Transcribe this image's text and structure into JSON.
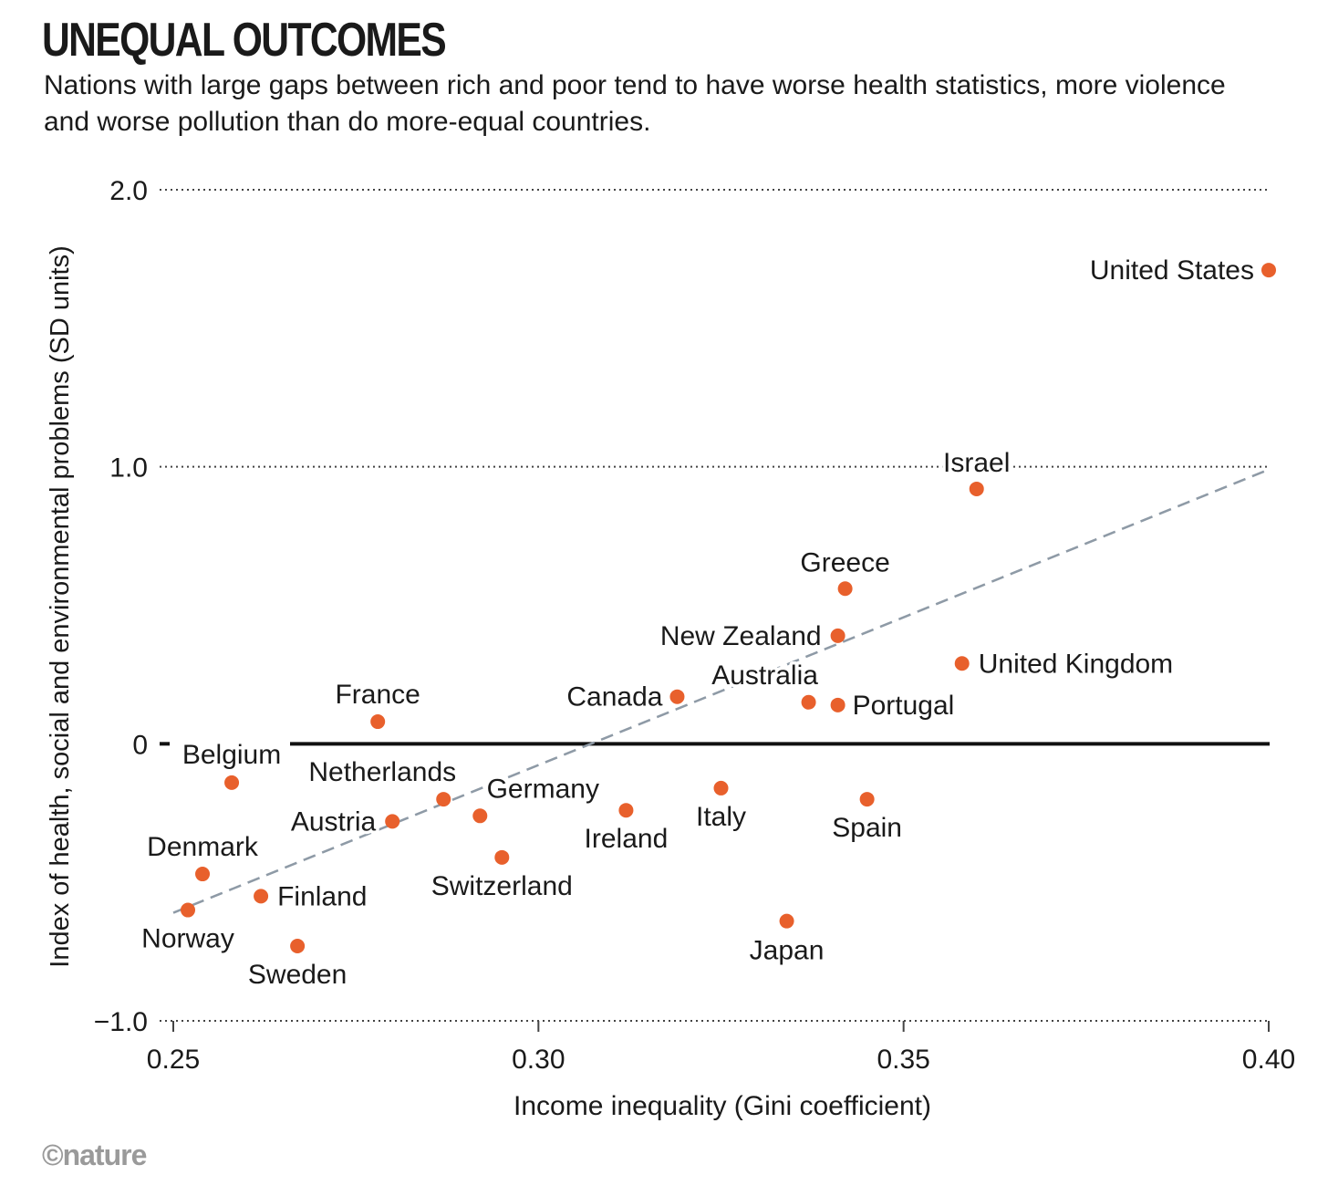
{
  "title": "UNEQUAL OUTCOMES",
  "subtitle": "Nations with large gaps between rich and poor tend to have worse health statistics, more violence and worse pollution than do more-equal countries.",
  "logo": "©nature",
  "chart_data": {
    "type": "scatter",
    "title": "UNEQUAL OUTCOMES",
    "xlabel": "Income inequality (Gini coefficient)",
    "ylabel": "Index of health, social and environmental problems (SD units)",
    "xlim": [
      0.25,
      0.4
    ],
    "ylim": [
      -1.0,
      2.0
    ],
    "xticks": [
      {
        "v": 0.25,
        "label": "0.25"
      },
      {
        "v": 0.3,
        "label": "0.30"
      },
      {
        "v": 0.35,
        "label": "0.35"
      },
      {
        "v": 0.4,
        "label": "0.40"
      }
    ],
    "yticks": [
      {
        "v": 2.0,
        "label": "2.0"
      },
      {
        "v": 1.0,
        "label": "1.0"
      },
      {
        "v": 0,
        "label": "0"
      },
      {
        "v": -1.0,
        "label": "−1.0"
      }
    ],
    "grid": "horizontal dotted",
    "trendline": {
      "x": [
        0.25,
        0.4
      ],
      "y": [
        -0.61,
        0.99
      ]
    },
    "color": "#e8602c",
    "points": [
      {
        "name": "United States",
        "x": 0.4,
        "y": 1.71
      },
      {
        "name": "Israel",
        "x": 0.36,
        "y": 0.92
      },
      {
        "name": "Greece",
        "x": 0.342,
        "y": 0.56
      },
      {
        "name": "New Zealand",
        "x": 0.341,
        "y": 0.39
      },
      {
        "name": "United Kingdom",
        "x": 0.358,
        "y": 0.29
      },
      {
        "name": "Australia",
        "x": 0.337,
        "y": 0.15
      },
      {
        "name": "Portugal",
        "x": 0.341,
        "y": 0.14
      },
      {
        "name": "Canada",
        "x": 0.319,
        "y": 0.17
      },
      {
        "name": "France",
        "x": 0.278,
        "y": 0.08
      },
      {
        "name": "Belgium",
        "x": 0.258,
        "y": -0.14
      },
      {
        "name": "Netherlands",
        "x": 0.287,
        "y": -0.2
      },
      {
        "name": "Germany",
        "x": 0.292,
        "y": -0.26
      },
      {
        "name": "Austria",
        "x": 0.28,
        "y": -0.28
      },
      {
        "name": "Switzerland",
        "x": 0.295,
        "y": -0.41
      },
      {
        "name": "Ireland",
        "x": 0.312,
        "y": -0.24
      },
      {
        "name": "Italy",
        "x": 0.325,
        "y": -0.16
      },
      {
        "name": "Spain",
        "x": 0.345,
        "y": -0.2
      },
      {
        "name": "Japan",
        "x": 0.334,
        "y": -0.64
      },
      {
        "name": "Denmark",
        "x": 0.254,
        "y": -0.47
      },
      {
        "name": "Finland",
        "x": 0.262,
        "y": -0.55
      },
      {
        "name": "Norway",
        "x": 0.252,
        "y": -0.6
      },
      {
        "name": "Sweden",
        "x": 0.267,
        "y": -0.73
      }
    ]
  }
}
